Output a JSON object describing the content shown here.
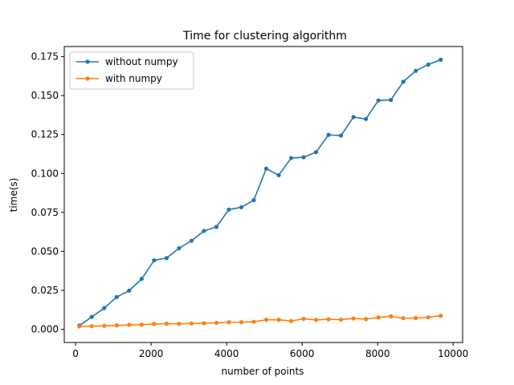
{
  "chart_data": {
    "type": "line",
    "title": "Time for clustering algorithm",
    "xlabel": "number of points",
    "ylabel": "time(s)",
    "xlim": [
      -300,
      10250
    ],
    "ylim": [
      -0.0085,
      0.1815
    ],
    "x_ticks": [
      0,
      2000,
      4000,
      6000,
      8000,
      10000
    ],
    "x_tick_labels": [
      "0",
      "2000",
      "4000",
      "6000",
      "8000",
      "10000"
    ],
    "y_ticks": [
      0.0,
      0.025,
      0.05,
      0.075,
      0.1,
      0.125,
      0.15,
      0.175
    ],
    "y_tick_labels": [
      "0.000",
      "0.025",
      "0.050",
      "0.075",
      "0.100",
      "0.125",
      "0.150",
      "0.175"
    ],
    "grid": false,
    "legend_position": "upper-left",
    "x": [
      100,
      430,
      760,
      1090,
      1420,
      1750,
      2080,
      2410,
      2740,
      3070,
      3400,
      3730,
      4060,
      4390,
      4720,
      5050,
      5380,
      5710,
      6040,
      6370,
      6700,
      7030,
      7360,
      7690,
      8020,
      8350,
      8680,
      9010,
      9340,
      9670
    ],
    "series": [
      {
        "name": "without numpy",
        "color": "#1f77b4",
        "values": [
          0.0024,
          0.0079,
          0.0136,
          0.0207,
          0.0248,
          0.0323,
          0.0442,
          0.0457,
          0.052,
          0.0568,
          0.0631,
          0.0657,
          0.0768,
          0.0783,
          0.0829,
          0.1031,
          0.0989,
          0.1099,
          0.1104,
          0.1137,
          0.1248,
          0.1243,
          0.1362,
          0.135,
          0.1469,
          0.1472,
          0.1589,
          0.1659,
          0.1699,
          0.173
        ]
      },
      {
        "name": "with numpy",
        "color": "#ff7f0e",
        "values": [
          0.0018,
          0.002,
          0.0022,
          0.0025,
          0.0028,
          0.0029,
          0.0034,
          0.0036,
          0.0035,
          0.0037,
          0.0039,
          0.0041,
          0.0045,
          0.0045,
          0.0048,
          0.0061,
          0.0061,
          0.0053,
          0.0067,
          0.006,
          0.0064,
          0.0062,
          0.0069,
          0.0065,
          0.0076,
          0.0083,
          0.0071,
          0.0072,
          0.0077,
          0.0087
        ]
      }
    ]
  }
}
